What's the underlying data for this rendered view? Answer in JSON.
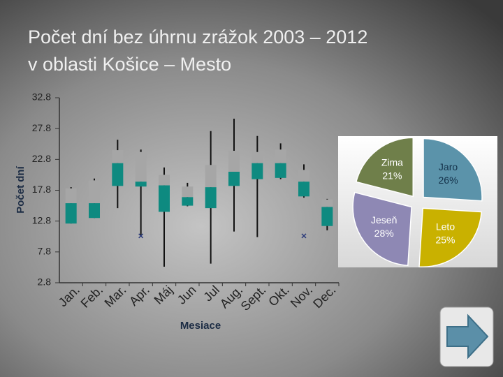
{
  "chart_data": [
    {
      "type": "box",
      "title": [
        "Počet dní bez úhrnu zrážok 2003 – 2012",
        "v oblasti Košice – Mesto"
      ],
      "y_label": "Počet dní",
      "x_label": "Mesiace",
      "categories": [
        "Jan.",
        "Feb.",
        "Mar.",
        "Apr.",
        "Máj",
        "Jun",
        "Jul",
        "Aug.",
        "Sept.",
        "Okt.",
        "Nov.",
        "Dec."
      ],
      "min": [
        12.4,
        13.3,
        14.9,
        10.5,
        5.4,
        15.2,
        5.9,
        11.1,
        10.2,
        19.6,
        16.6,
        11.3
      ],
      "q1": [
        12.4,
        13.3,
        18.5,
        18.4,
        14.3,
        15.3,
        14.9,
        18.5,
        19.6,
        19.8,
        16.8,
        12.0
      ],
      "median": [
        15.7,
        15.7,
        22.2,
        19.2,
        18.6,
        16.7,
        18.3,
        20.8,
        22.2,
        22.2,
        19.2,
        15.1
      ],
      "q3": [
        18.1,
        19.4,
        24.3,
        24.0,
        20.3,
        18.4,
        21.9,
        24.2,
        24.0,
        24.4,
        21.1,
        16.3
      ],
      "max": [
        18.3,
        19.7,
        26.0,
        24.4,
        21.5,
        19.0,
        27.4,
        29.4,
        26.6,
        25.4,
        22.0,
        16.4
      ],
      "outliers": [
        null,
        null,
        null,
        10.4,
        null,
        null,
        null,
        null,
        null,
        null,
        10.4,
        null
      ],
      "lower_color": "#0e8a80",
      "upper_color": "#a6a6a6",
      "whisker_color": "#111111",
      "outlier_color": "#2a3a7a",
      "ylim": [
        2.8,
        32.8
      ],
      "yticks": [
        2.8,
        7.8,
        12.8,
        17.8,
        22.8,
        27.8,
        32.8
      ]
    },
    {
      "type": "pie",
      "categories": [
        "Jaro",
        "Leto",
        "Jeseň",
        "Zima"
      ],
      "values": [
        26,
        25,
        28,
        21
      ],
      "value_labels": [
        "26%",
        "25%",
        "28%",
        "21%"
      ],
      "colors": [
        "#5b93aa",
        "#c9b100",
        "#8e88b4",
        "#6f7f4a"
      ]
    }
  ]
}
